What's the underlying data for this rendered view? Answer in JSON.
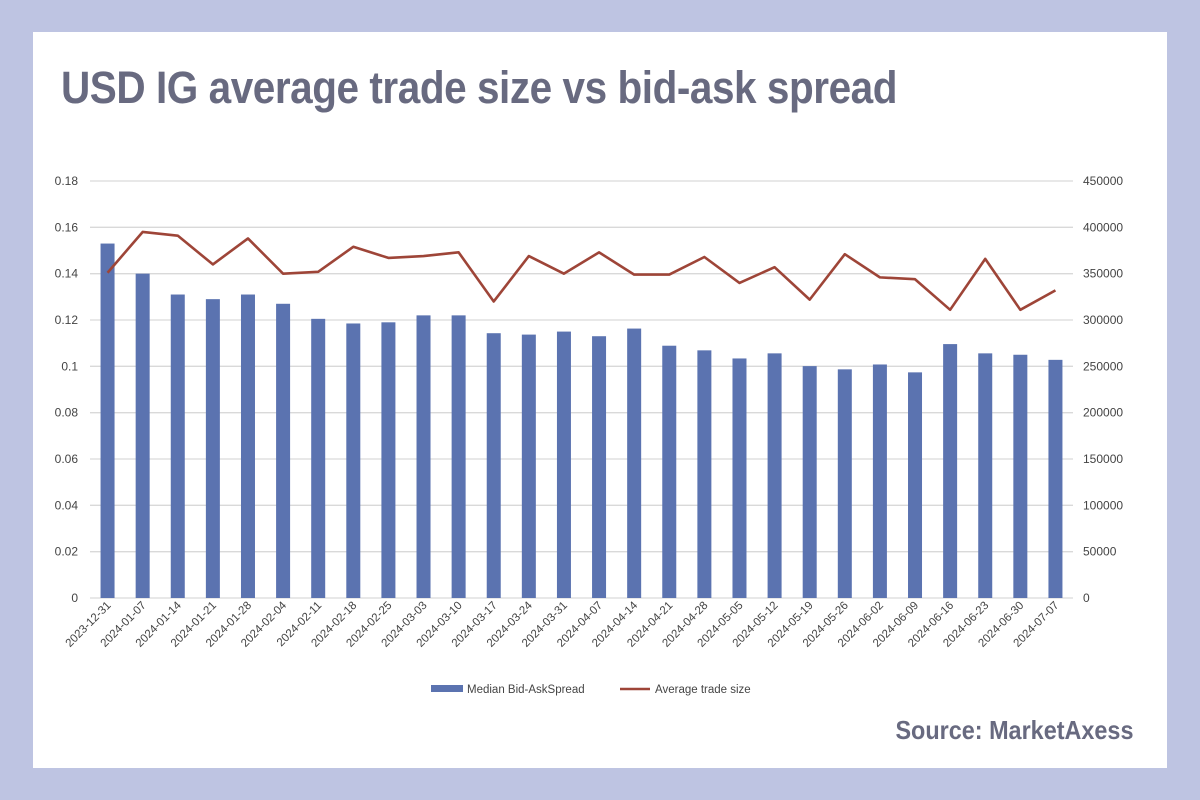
{
  "title": "USD IG average trade size vs bid-ask spread",
  "source": "Source: MarketAxess",
  "chart_data": {
    "type": "bar+line",
    "categories": [
      "2023-12-31",
      "2024-01-07",
      "2024-01-14",
      "2024-01-21",
      "2024-01-28",
      "2024-02-04",
      "2024-02-11",
      "2024-02-18",
      "2024-02-25",
      "2024-03-03",
      "2024-03-10",
      "2024-03-17",
      "2024-03-24",
      "2024-03-31",
      "2024-04-07",
      "2024-04-14",
      "2024-04-21",
      "2024-04-28",
      "2024-05-05",
      "2024-05-12",
      "2024-05-19",
      "2024-05-26",
      "2024-06-02",
      "2024-06-09",
      "2024-06-16",
      "2024-06-23",
      "2024-06-30",
      "2024-07-07"
    ],
    "series": [
      {
        "name": "Median Bid-AskSpread",
        "type": "bar",
        "axis": "left",
        "color": "#5b73b0",
        "values": [
          0.153,
          0.14,
          0.131,
          0.129,
          0.131,
          0.127,
          0.1205,
          0.1185,
          0.119,
          0.122,
          0.122,
          0.1143,
          0.1137,
          0.115,
          0.113,
          0.1163,
          0.1089,
          0.1069,
          0.1034,
          0.1056,
          0.1001,
          0.0987,
          0.1008,
          0.0974,
          0.1096,
          0.1056,
          0.105,
          0.1028
        ]
      },
      {
        "name": "Average trade size",
        "type": "line",
        "axis": "right",
        "color": "#9e4538",
        "values": [
          351000,
          395000,
          391000,
          360000,
          388000,
          350000,
          352000,
          379000,
          367000,
          369000,
          373000,
          320000,
          369000,
          350000,
          373000,
          349000,
          349000,
          368000,
          340000,
          357000,
          322000,
          371000,
          346000,
          344000,
          311000,
          366000,
          311000,
          332000
        ]
      }
    ],
    "left_axis": {
      "range": [
        0,
        0.18
      ],
      "ticks": [
        "0",
        "0.02",
        "0.04",
        "0.06",
        "0.08",
        "0.1",
        "0.12",
        "0.14",
        "0.16",
        "0.18"
      ]
    },
    "right_axis": {
      "range": [
        0,
        450000
      ],
      "ticks": [
        "0",
        "50000",
        "100000",
        "150000",
        "200000",
        "250000",
        "300000",
        "350000",
        "400000",
        "450000"
      ]
    },
    "grid": true,
    "legend": "bottom"
  }
}
